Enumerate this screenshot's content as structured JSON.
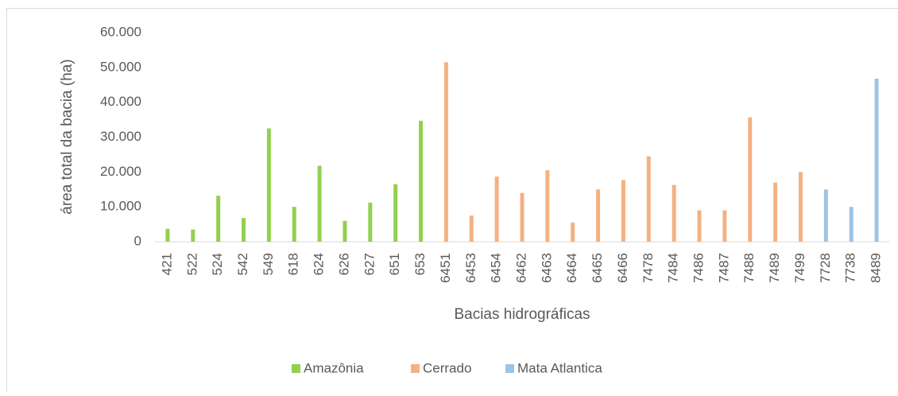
{
  "chart_data": {
    "type": "bar",
    "y_label": "área  total da bacia (ha)",
    "x_label": "Bacias hidrográficas",
    "categories": [
      "421",
      "522",
      "524",
      "542",
      "549",
      "618",
      "624",
      "626",
      "627",
      "651",
      "653",
      "6451",
      "6453",
      "6454",
      "6462",
      "6463",
      "6464",
      "6465",
      "6466",
      "7478",
      "7484",
      "7486",
      "7487",
      "7488",
      "7489",
      "7499",
      "7728",
      "7738",
      "8489"
    ],
    "series": [
      {
        "name": "Amazônia",
        "color": "#92d050",
        "values": [
          3700,
          3500,
          13200,
          6800,
          32500,
          10000,
          21800,
          6000,
          11200,
          16500,
          34700,
          null,
          null,
          null,
          null,
          null,
          null,
          null,
          null,
          null,
          null,
          null,
          null,
          null,
          null,
          null,
          null,
          null,
          null
        ]
      },
      {
        "name": "Cerrado",
        "color": "#f4b183",
        "values": [
          null,
          null,
          null,
          null,
          null,
          null,
          null,
          null,
          null,
          null,
          null,
          51500,
          7500,
          18700,
          14000,
          20500,
          5500,
          15000,
          17700,
          24500,
          16300,
          9000,
          9000,
          35700,
          17000,
          20000,
          null,
          null,
          null
        ]
      },
      {
        "name": "Mata Atlantica",
        "color": "#9dc3e6",
        "values": [
          null,
          null,
          null,
          null,
          null,
          null,
          null,
          null,
          null,
          null,
          null,
          null,
          null,
          null,
          null,
          null,
          null,
          null,
          null,
          null,
          null,
          null,
          null,
          null,
          null,
          null,
          15000,
          10000,
          46800
        ]
      }
    ],
    "ylim": [
      0,
      60000
    ],
    "yticks": [
      0,
      {
        "value": 10000,
        "label": "10.000"
      },
      {
        "value": 20000,
        "label": "20.000"
      },
      {
        "value": 30000,
        "label": "30.000"
      },
      {
        "value": 40000,
        "label": "40.000"
      },
      {
        "value": 50000,
        "label": "50.000"
      },
      {
        "value": 60000,
        "label": "60.000"
      }
    ],
    "grid": false,
    "legend": "bottom"
  }
}
